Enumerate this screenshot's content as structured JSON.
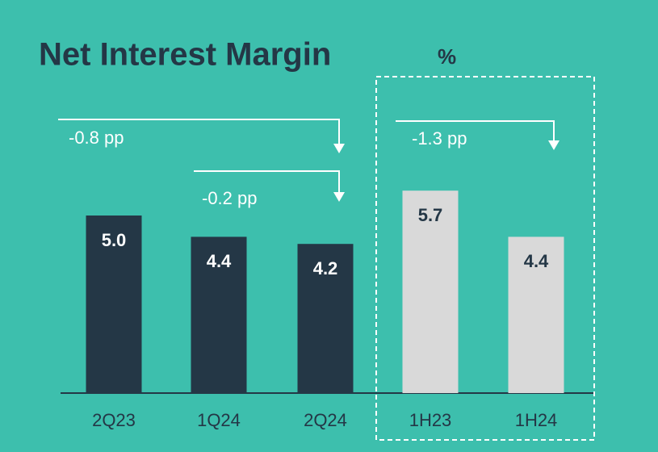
{
  "chart_data": {
    "type": "bar",
    "title": "Net Interest Margin",
    "unit": "%",
    "categories": [
      "2Q23",
      "1Q24",
      "2Q24",
      "1H23",
      "1H24"
    ],
    "values": [
      5.0,
      4.4,
      4.2,
      5.7,
      4.4
    ],
    "value_labels": [
      "5.0",
      "4.4",
      "4.2",
      "5.7",
      "4.4"
    ],
    "colors": [
      "#243746",
      "#243746",
      "#243746",
      "#d9d9d9",
      "#d9d9d9"
    ],
    "annotations": [
      "-0.8 pp",
      "-0.2 pp",
      "-1.3 pp"
    ]
  }
}
